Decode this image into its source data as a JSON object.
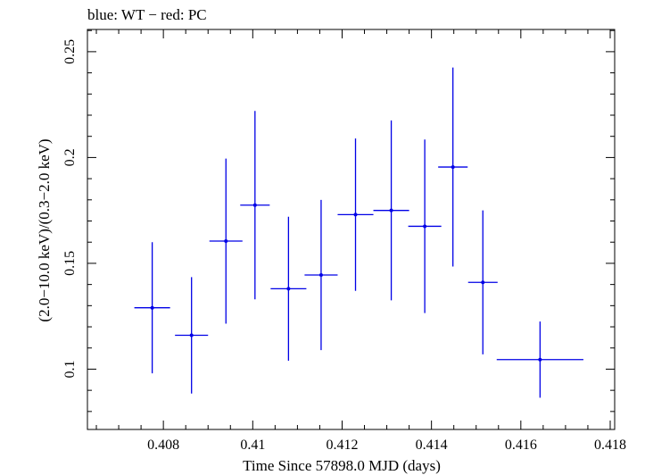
{
  "chart_data": {
    "type": "scatter",
    "title": "blue: WT − red: PC",
    "xlabel": "Time Since 57898.0 MJD (days)",
    "ylabel": "(2.0−10.0 keV)/(0.3−2.0 keV)",
    "xlim": [
      0.4063,
      0.4181
    ],
    "ylim": [
      0.0715,
      0.2605
    ],
    "x_ticks": [
      0.408,
      0.41,
      0.412,
      0.414,
      0.416,
      0.418
    ],
    "x_tick_labels": [
      "0.408",
      "0.41",
      "0.412",
      "0.414",
      "0.416",
      "0.418"
    ],
    "y_ticks": [
      0.1,
      0.15,
      0.2,
      0.25
    ],
    "y_tick_labels": [
      "0.1",
      "0.15",
      "0.2",
      "0.25"
    ],
    "x_minor_step": 0.0005,
    "y_minor_step": 0.01,
    "grid": false,
    "series": [
      {
        "name": "WT",
        "color": "#0000e6",
        "points": [
          {
            "x": 0.40775,
            "xerr": 0.0004,
            "y": 0.129,
            "yerr_low": 0.031,
            "yerr_high": 0.031
          },
          {
            "x": 0.40863,
            "xerr": 0.00037,
            "y": 0.116,
            "yerr_low": 0.0275,
            "yerr_high": 0.0275
          },
          {
            "x": 0.4094,
            "xerr": 0.00037,
            "y": 0.1605,
            "yerr_low": 0.039,
            "yerr_high": 0.039
          },
          {
            "x": 0.41005,
            "xerr": 0.00033,
            "y": 0.1775,
            "yerr_low": 0.0445,
            "yerr_high": 0.0445
          },
          {
            "x": 0.4108,
            "xerr": 0.0004,
            "y": 0.138,
            "yerr_low": 0.034,
            "yerr_high": 0.034
          },
          {
            "x": 0.41153,
            "xerr": 0.00037,
            "y": 0.1445,
            "yerr_low": 0.0355,
            "yerr_high": 0.0355
          },
          {
            "x": 0.4123,
            "xerr": 0.0004,
            "y": 0.173,
            "yerr_low": 0.036,
            "yerr_high": 0.036
          },
          {
            "x": 0.4131,
            "xerr": 0.0004,
            "y": 0.175,
            "yerr_low": 0.0425,
            "yerr_high": 0.0425
          },
          {
            "x": 0.41385,
            "xerr": 0.00037,
            "y": 0.1675,
            "yerr_low": 0.041,
            "yerr_high": 0.041
          },
          {
            "x": 0.41448,
            "xerr": 0.00033,
            "y": 0.1955,
            "yerr_low": 0.047,
            "yerr_high": 0.047
          },
          {
            "x": 0.41515,
            "xerr": 0.00033,
            "y": 0.141,
            "yerr_low": 0.034,
            "yerr_high": 0.034
          },
          {
            "x": 0.41643,
            "xerr": 0.00097,
            "y": 0.1045,
            "yerr_low": 0.018,
            "yerr_high": 0.018
          }
        ]
      }
    ]
  }
}
